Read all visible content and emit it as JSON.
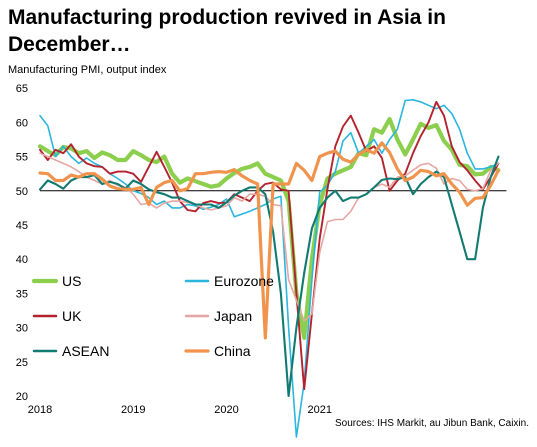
{
  "title": "Manufacturing production revived in Asia in December…",
  "subtitle": "Manufacturing  PMI, output index",
  "source": "Sources: IHS Markit, au Jibun Bank, Caixin.",
  "chart_data": {
    "type": "line",
    "ylim": [
      20,
      65
    ],
    "yticks": [
      20,
      25,
      30,
      35,
      40,
      45,
      50,
      55,
      60,
      65
    ],
    "reference_line": 50,
    "x_start": "2018-01",
    "x_end": "2021-12",
    "xticks": [
      "2018",
      "2019",
      "2020",
      "2021"
    ],
    "grid": false,
    "legend": "lower-left inside, two columns",
    "series": [
      {
        "name": "US",
        "color": "#8ccf4f",
        "width": 4.2,
        "values": [
          56.5,
          55.8,
          55.2,
          56.4,
          56.2,
          55.5,
          55.8,
          54.8,
          55.6,
          55.2,
          54.5,
          54.5,
          55.8,
          55.2,
          54.5,
          54.2,
          55,
          52.5,
          51.2,
          51.8,
          51.4,
          51,
          50.6,
          50.8,
          51.8,
          52.6,
          53.2,
          53.5,
          54,
          52.5,
          52,
          51.5,
          48.5,
          35,
          28.5,
          40,
          48,
          51.8,
          52.5,
          53,
          53.5,
          55.5,
          55.2,
          59,
          58.5,
          60.5,
          57.5,
          55.3,
          57.5,
          59.8,
          59.2,
          59.6,
          57.3,
          56,
          53.8,
          53.6,
          52.4,
          52.5,
          53.5,
          53
        ]
      },
      {
        "name": "Eurozone",
        "color": "#2ab6de",
        "width": 1.6,
        "values": [
          61,
          59.5,
          55,
          56.5,
          55,
          54,
          54.8,
          54,
          53.5,
          52.5,
          51.8,
          51,
          50,
          49.6,
          49,
          48,
          48.5,
          47.5,
          47.5,
          48,
          47.8,
          47.3,
          47.6,
          48,
          48.8,
          46.2,
          46.6,
          47,
          47.5,
          48,
          48.8,
          49.2,
          30,
          14,
          22,
          37,
          49.8,
          50.8,
          52.8,
          57.3,
          58.5,
          55.5,
          56.5,
          57.5,
          55.5,
          57.5,
          59,
          63.2,
          63.3,
          63,
          62.5,
          62,
          62.5,
          61.3,
          59,
          55.5,
          53.2,
          53.2,
          53.5,
          54
        ]
      },
      {
        "name": "UK",
        "color": "#b3232e",
        "width": 1.9,
        "values": [
          56,
          54.5,
          56,
          55.5,
          56.8,
          55,
          54,
          53.6,
          53.5,
          52.5,
          52.8,
          52.8,
          52.5,
          51.3,
          53.5,
          55.7,
          53.5,
          51.2,
          48.5,
          47.2,
          47,
          48.2,
          48.5,
          48.2,
          48.3,
          49.5,
          49,
          48.5,
          50,
          51,
          51.2,
          50.2,
          50,
          35,
          21,
          32,
          43,
          50.3,
          56.5,
          59.4,
          61,
          58.5,
          55.8,
          56.5,
          54.8,
          50,
          51.5,
          52.5,
          55.5,
          58,
          60,
          63,
          61,
          56.5,
          54.2,
          53,
          51.5,
          50.2,
          52,
          54
        ]
      },
      {
        "name": "Japan",
        "color": "#e5a7a3",
        "width": 1.6,
        "values": [
          55.5,
          55,
          54.5,
          54,
          53.5,
          52.8,
          52,
          51.5,
          51,
          51.5,
          50.8,
          50.5,
          49.5,
          48,
          48.2,
          47.5,
          48.2,
          48.5,
          48.5,
          48.3,
          48,
          47.5,
          47.2,
          47.5,
          47.8,
          49,
          48.5,
          49.5,
          49.5,
          49.2,
          48,
          47.8,
          37,
          34,
          31,
          32,
          41,
          45.5,
          45.8,
          45.8,
          47,
          49,
          49.5,
          50.5,
          51,
          50.5,
          52,
          52.2,
          53,
          53.8,
          54,
          53.3,
          51,
          51.8,
          51.5,
          50.2,
          50,
          50.3,
          53,
          54
        ]
      },
      {
        "name": "ASEAN",
        "color": "#127b71",
        "width": 2.1,
        "values": [
          50.2,
          51.5,
          51,
          50.3,
          51.5,
          52,
          52,
          52.3,
          51,
          51.3,
          51,
          50.3,
          51.5,
          51,
          50.2,
          49.8,
          49.5,
          49,
          49,
          48.5,
          48,
          48,
          48,
          47.5,
          48.3,
          49.3,
          50,
          50.5,
          50.5,
          49.5,
          44,
          35,
          20,
          30,
          38,
          44.5,
          47.5,
          49,
          50,
          48.5,
          49,
          49,
          49.5,
          50.5,
          51.6,
          51.8,
          51.7,
          52,
          49.5,
          51,
          52,
          52.8,
          52,
          48,
          44,
          40,
          40,
          47.5,
          52,
          55
        ]
      },
      {
        "name": "China",
        "color": "#f0944d",
        "width": 3.2,
        "values": [
          52.6,
          52.5,
          51.5,
          51.5,
          52.3,
          52,
          52.5,
          52.5,
          51.7,
          50.7,
          50.3,
          50.2,
          50.2,
          50.5,
          48,
          50.5,
          51.2,
          51.5,
          50,
          50.3,
          52.5,
          52.5,
          52.7,
          52.8,
          52.7,
          53.1,
          52.2,
          51.5,
          51,
          28.5,
          51,
          51,
          51,
          54,
          53,
          51.5,
          55,
          55.5,
          55.8,
          54.6,
          54.2,
          55.3,
          56,
          55.5,
          57,
          55.6,
          53.2,
          51.5,
          52,
          53,
          52.8,
          52.2,
          52.5,
          51,
          49.8,
          47.9,
          48.9,
          49,
          50.8,
          53
        ]
      }
    ]
  },
  "legend": [
    {
      "label": "US",
      "color": "#8ccf4f"
    },
    {
      "label": "Eurozone",
      "color": "#2ab6de"
    },
    {
      "label": "UK",
      "color": "#b3232e"
    },
    {
      "label": "Japan",
      "color": "#e5a7a3"
    },
    {
      "label": "ASEAN",
      "color": "#127b71"
    },
    {
      "label": "China",
      "color": "#f0944d"
    }
  ]
}
